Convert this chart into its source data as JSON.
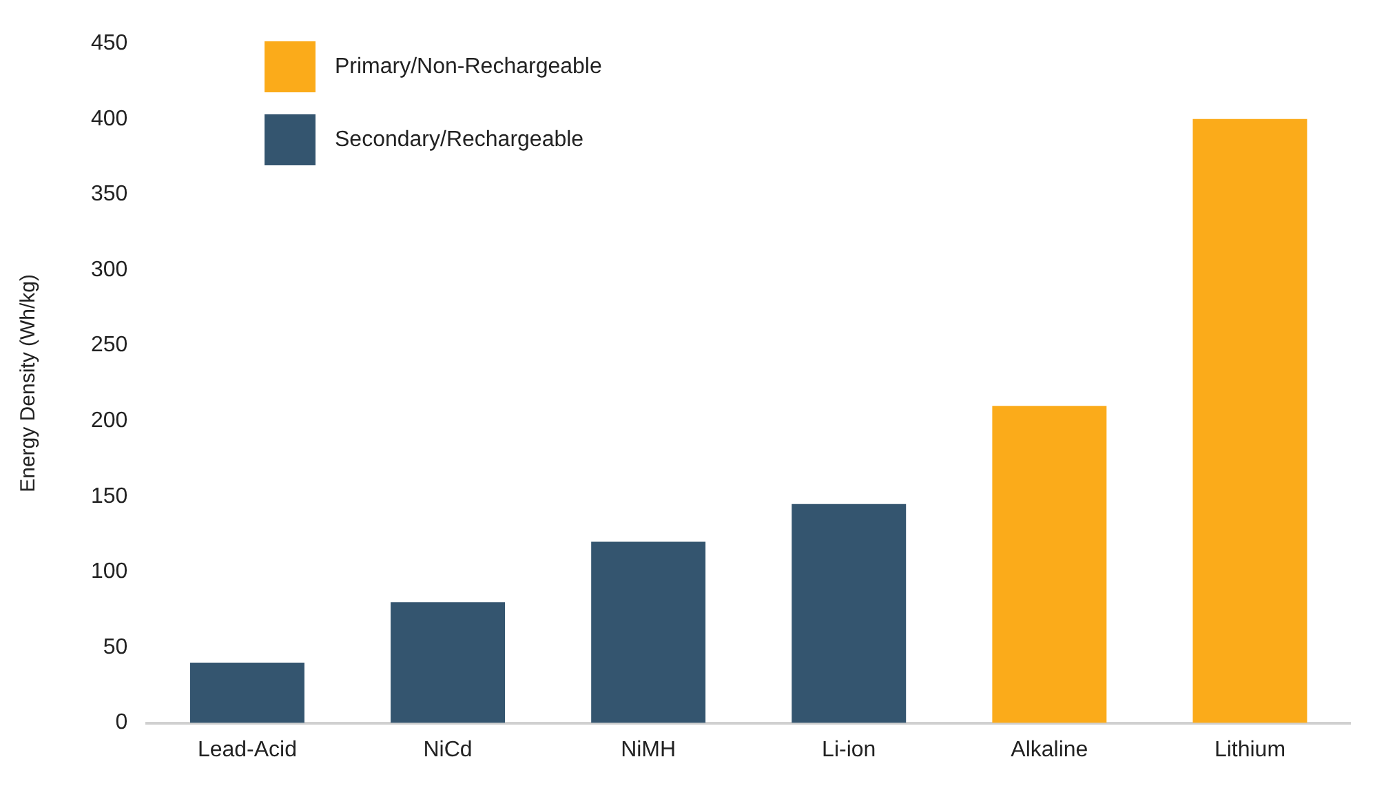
{
  "chart_data": {
    "type": "bar",
    "ylabel": "Energy Density (Wh/kg)",
    "categories": [
      "Lead-Acid",
      "NiCd",
      "NiMH",
      "Li-ion",
      "Alkaline",
      "Lithium"
    ],
    "series": [
      {
        "name": "Primary/Non-Rechargeable",
        "color": "#fbab1a",
        "values": [
          null,
          null,
          null,
          null,
          210,
          400
        ]
      },
      {
        "name": "Secondary/Rechargeable",
        "color": "#34556f",
        "values": [
          40,
          80,
          120,
          145,
          null,
          null
        ]
      }
    ],
    "stacked": true,
    "ylim": [
      0,
      450
    ],
    "yticks": [
      0,
      50,
      100,
      150,
      200,
      250,
      300,
      350,
      400,
      450
    ],
    "grid": false,
    "legend": "top left"
  }
}
